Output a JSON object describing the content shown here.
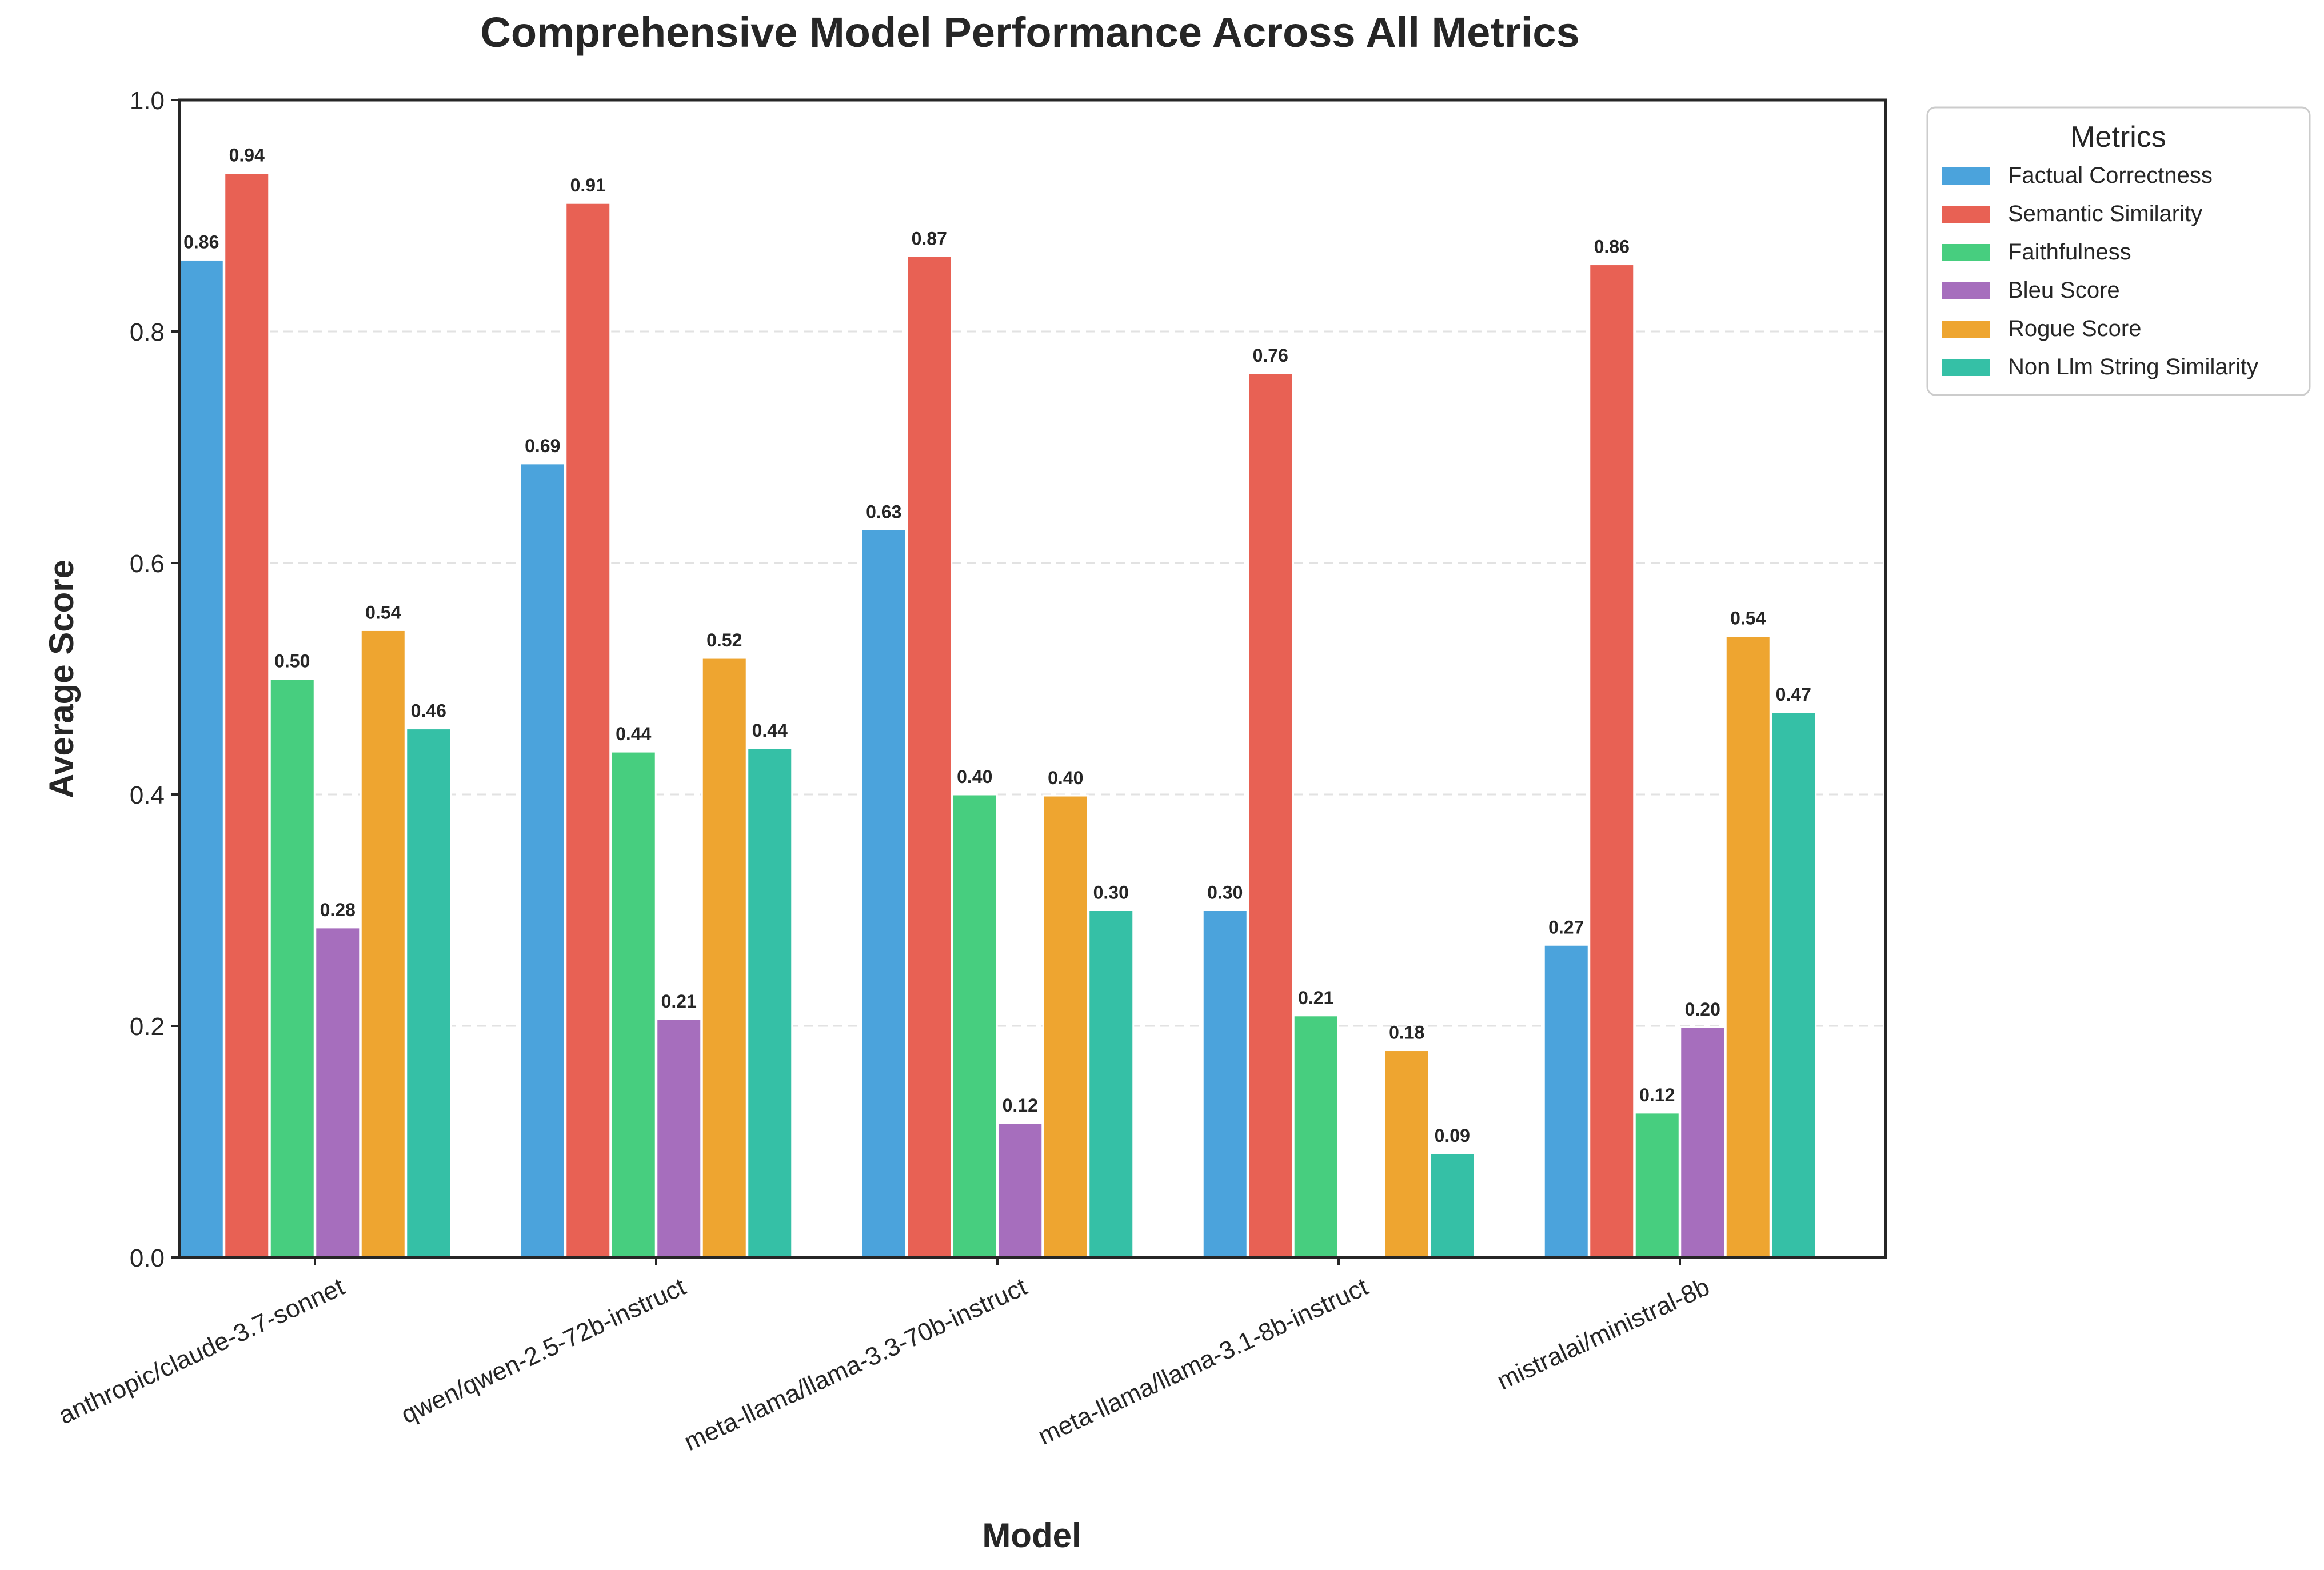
{
  "chart_data": {
    "type": "bar",
    "title": "Comprehensive Model Performance Across All Metrics",
    "xlabel": "Model",
    "ylabel": "Average Score",
    "ylim": [
      0,
      1.0
    ],
    "yticks": [
      "0.0",
      "0.2",
      "0.4",
      "0.6",
      "0.8",
      "1.0"
    ],
    "grid": "horizontal dashed",
    "legend_title": "Metrics",
    "legend_placement": "outside top-right",
    "categories": [
      "anthropic/claude-3.7-sonnet",
      "qwen/qwen-2.5-72b-instruct",
      "meta-llama/llama-3.3-70b-instruct",
      "meta-llama/llama-3.1-8b-instruct",
      "mistralai/ministral-8b"
    ],
    "series": [
      {
        "name": "Factual Correctness",
        "color": "#4BA3DC",
        "values": [
          0.862,
          0.686,
          0.629,
          0.3,
          0.27
        ],
        "labels": [
          "0.86",
          "0.69",
          "0.63",
          "0.30",
          "0.27"
        ]
      },
      {
        "name": "Semantic Similarity",
        "color": "#E86154",
        "values": [
          0.937,
          0.911,
          0.865,
          0.764,
          0.858
        ],
        "labels": [
          "0.94",
          "0.91",
          "0.87",
          "0.76",
          "0.86"
        ]
      },
      {
        "name": "Faithfulness",
        "color": "#47CE7F",
        "values": [
          0.5,
          0.437,
          0.4,
          0.209,
          0.125
        ],
        "labels": [
          "0.50",
          "0.44",
          "0.40",
          "0.21",
          "0.12"
        ]
      },
      {
        "name": "Bleu Score",
        "color": "#A66EBD",
        "values": [
          0.285,
          0.206,
          0.116,
          0.0,
          0.199
        ],
        "labels": [
          "0.28",
          "0.21",
          "0.12",
          "",
          "0.20"
        ]
      },
      {
        "name": "Rogue Score",
        "color": "#EEA530",
        "values": [
          0.542,
          0.518,
          0.399,
          0.179,
          0.537
        ],
        "labels": [
          "0.54",
          "0.52",
          "0.40",
          "0.18",
          "0.54"
        ]
      },
      {
        "name": "Non Llm String Similarity",
        "color": "#35C0A6",
        "values": [
          0.457,
          0.44,
          0.3,
          0.09,
          0.471
        ],
        "labels": [
          "0.46",
          "0.44",
          "0.30",
          "0.09",
          "0.47"
        ]
      }
    ]
  }
}
